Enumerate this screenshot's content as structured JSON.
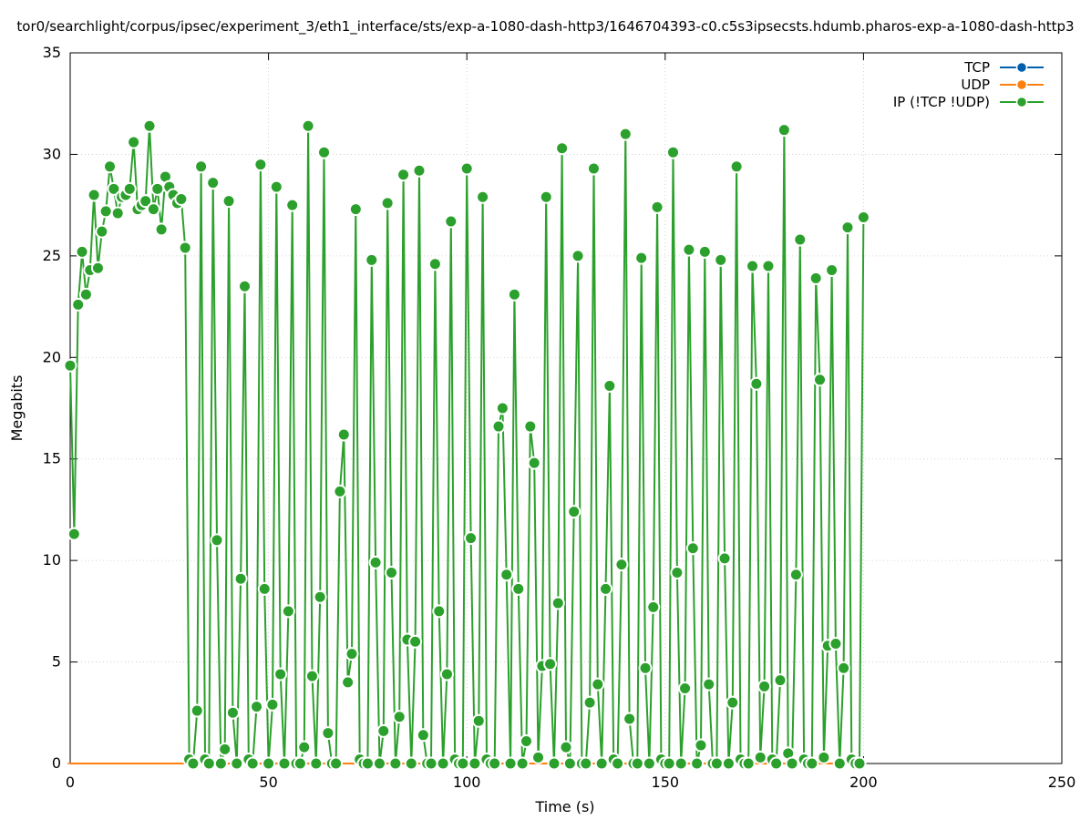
{
  "chart_data": {
    "type": "line",
    "title": "tor0/searchlight/corpus/ipsec/experiment_3/eth1_interface/sts/exp-a-1080-dash-http3/1646704393-c0.c5s3ipsecsts.hdumb.pharos-exp-a-1080-dash-http3",
    "xlabel": "Time (s)",
    "ylabel": "Megabits",
    "xlim": [
      0,
      250
    ],
    "ylim": [
      0,
      35
    ],
    "xticks": [
      0,
      50,
      100,
      150,
      200,
      250
    ],
    "yticks": [
      0,
      5,
      10,
      15,
      20,
      25,
      30,
      35
    ],
    "grid": true,
    "legend_position": "top-right",
    "series": [
      {
        "name": "TCP",
        "color": "#0060ad",
        "x": [],
        "y": []
      },
      {
        "name": "UDP",
        "color": "#ff7f0e",
        "x": [
          0,
          2,
          4,
          6,
          8,
          10,
          12,
          14,
          16,
          18,
          20,
          22,
          24,
          26,
          28,
          30,
          32,
          34,
          36,
          38,
          40,
          42,
          44,
          46,
          48,
          50,
          52,
          54,
          56,
          58,
          60,
          62,
          64,
          66,
          68,
          70,
          72,
          74,
          76,
          78,
          80,
          82,
          84,
          86,
          88,
          90,
          92,
          94,
          96,
          98,
          100,
          102,
          104,
          106,
          108,
          110,
          112,
          114,
          116,
          118,
          120,
          122,
          124,
          126,
          128,
          130,
          132,
          134,
          136,
          138,
          140,
          142,
          144,
          146,
          148,
          150,
          152,
          154,
          156,
          158,
          160,
          162,
          164,
          166,
          168,
          170,
          172,
          174,
          176,
          178,
          180,
          182,
          184,
          186,
          188,
          190,
          192,
          194,
          196,
          198,
          200
        ],
        "y": [
          0,
          0,
          0,
          0,
          0,
          0,
          0,
          0,
          0,
          0,
          0,
          0,
          0,
          0,
          0,
          0,
          0,
          0,
          0,
          0,
          0,
          0,
          0,
          0,
          0,
          0,
          0,
          0,
          0,
          0,
          0,
          0,
          0,
          0,
          0,
          0,
          0,
          0,
          0,
          0,
          0,
          0,
          0,
          0,
          0,
          0,
          0,
          0,
          0,
          0,
          0,
          0,
          0,
          0,
          0,
          0,
          0,
          0,
          0,
          0,
          0,
          0,
          0,
          0,
          0,
          0,
          0,
          0,
          0,
          0,
          0,
          0,
          0,
          0,
          0,
          0,
          0,
          0,
          0,
          0,
          0,
          0,
          0,
          0,
          0,
          0,
          0,
          0,
          0,
          0,
          0,
          0,
          0,
          0,
          0,
          0,
          0,
          0,
          0,
          0,
          0
        ]
      },
      {
        "name": "IP (!TCP  !UDP)",
        "color": "#2ca02c",
        "x": [
          0,
          1,
          2,
          3,
          4,
          5,
          6,
          7,
          8,
          9,
          10,
          11,
          12,
          13,
          14,
          15,
          16,
          17,
          18,
          19,
          20,
          21,
          22,
          23,
          24,
          25,
          26,
          27,
          28,
          29,
          30,
          31,
          32,
          33,
          34,
          35,
          36,
          37,
          38,
          39,
          40,
          41,
          42,
          43,
          44,
          45,
          46,
          47,
          48,
          49,
          50,
          51,
          52,
          53,
          54,
          55,
          56,
          57,
          58,
          59,
          60,
          61,
          62,
          63,
          64,
          65,
          66,
          67,
          68,
          69,
          70,
          71,
          72,
          73,
          74,
          75,
          76,
          77,
          78,
          79,
          80,
          81,
          82,
          83,
          84,
          85,
          86,
          87,
          88,
          89,
          90,
          91,
          92,
          93,
          94,
          95,
          96,
          97,
          98,
          99,
          100,
          101,
          102,
          103,
          104,
          105,
          106,
          107,
          108,
          109,
          110,
          111,
          112,
          113,
          114,
          115,
          116,
          117,
          118,
          119,
          120,
          121,
          122,
          123,
          124,
          125,
          126,
          127,
          128,
          129,
          130,
          131,
          132,
          133,
          134,
          135,
          136,
          137,
          138,
          139,
          140,
          141,
          142,
          143,
          144,
          145,
          146,
          147,
          148,
          149,
          150,
          151,
          152,
          153,
          154,
          155,
          156,
          157,
          158,
          159,
          160,
          161,
          162,
          163,
          164,
          165,
          166,
          167,
          168,
          169,
          170,
          171,
          172,
          173,
          174,
          175,
          176,
          177,
          178,
          179,
          180,
          181,
          182,
          183,
          184,
          185,
          186,
          187,
          188,
          189,
          190,
          191,
          192,
          193,
          194,
          195,
          196,
          197,
          198,
          199,
          200
        ],
        "y": [
          19.6,
          11.3,
          22.6,
          25.2,
          23.1,
          24.3,
          28.0,
          24.4,
          26.2,
          27.2,
          29.4,
          28.3,
          27.1,
          27.9,
          28.0,
          28.3,
          30.6,
          27.3,
          27.5,
          27.7,
          31.4,
          27.3,
          28.3,
          26.3,
          28.9,
          28.4,
          28.0,
          27.6,
          27.8,
          25.4,
          0.2,
          0.0,
          2.6,
          29.4,
          0.2,
          0.0,
          28.6,
          11.0,
          0.0,
          0.7,
          27.7,
          2.5,
          0.0,
          9.1,
          23.5,
          0.2,
          0.0,
          2.8,
          29.5,
          8.6,
          0.0,
          2.9,
          28.4,
          4.4,
          0.0,
          7.5,
          27.5,
          0.0,
          0.0,
          0.8,
          31.4,
          4.3,
          0.0,
          8.2,
          30.1,
          1.5,
          0.0,
          0.0,
          13.4,
          16.2,
          4.0,
          5.4,
          27.3,
          0.2,
          0.0,
          0.0,
          24.8,
          9.9,
          0.0,
          1.6,
          27.6,
          9.4,
          0.0,
          2.3,
          29.0,
          6.1,
          0.0,
          6.0,
          29.2,
          1.4,
          0.0,
          0.0,
          24.6,
          7.5,
          0.0,
          4.4,
          26.7,
          0.2,
          0.0,
          0.0,
          29.3,
          11.1,
          0.0,
          2.1,
          27.9,
          0.2,
          0.0,
          0.0,
          16.6,
          17.5,
          9.3,
          0.0,
          23.1,
          8.6,
          0.0,
          1.1,
          16.6,
          14.8,
          0.3,
          4.8,
          27.9,
          4.9,
          0.0,
          7.9,
          30.3,
          0.8,
          0.0,
          12.4,
          25.0,
          0.0,
          0.0,
          3.0,
          29.3,
          3.9,
          0.0,
          8.6,
          18.6,
          0.2,
          0.0,
          9.8,
          31.0,
          2.2,
          0.0,
          0.0,
          24.9,
          4.7,
          0.0,
          7.7,
          27.4,
          0.2,
          0.0,
          0.0,
          30.1,
          9.4,
          0.0,
          3.7,
          25.3,
          10.6,
          0.0,
          0.9,
          25.2,
          3.9,
          0.0,
          0.0,
          24.8,
          10.1,
          0.0,
          3.0,
          29.4,
          0.2,
          0.0,
          0.0,
          24.5,
          18.7,
          0.3,
          3.8,
          24.5,
          0.2,
          0.0,
          4.1,
          31.2,
          0.5,
          0.0,
          9.3,
          25.8,
          0.2,
          0.0,
          0.0,
          23.9,
          18.9,
          0.3,
          5.8,
          24.3,
          5.9,
          0.0,
          4.7,
          26.4,
          0.2,
          0.0,
          0.0,
          26.9
        ]
      }
    ]
  }
}
